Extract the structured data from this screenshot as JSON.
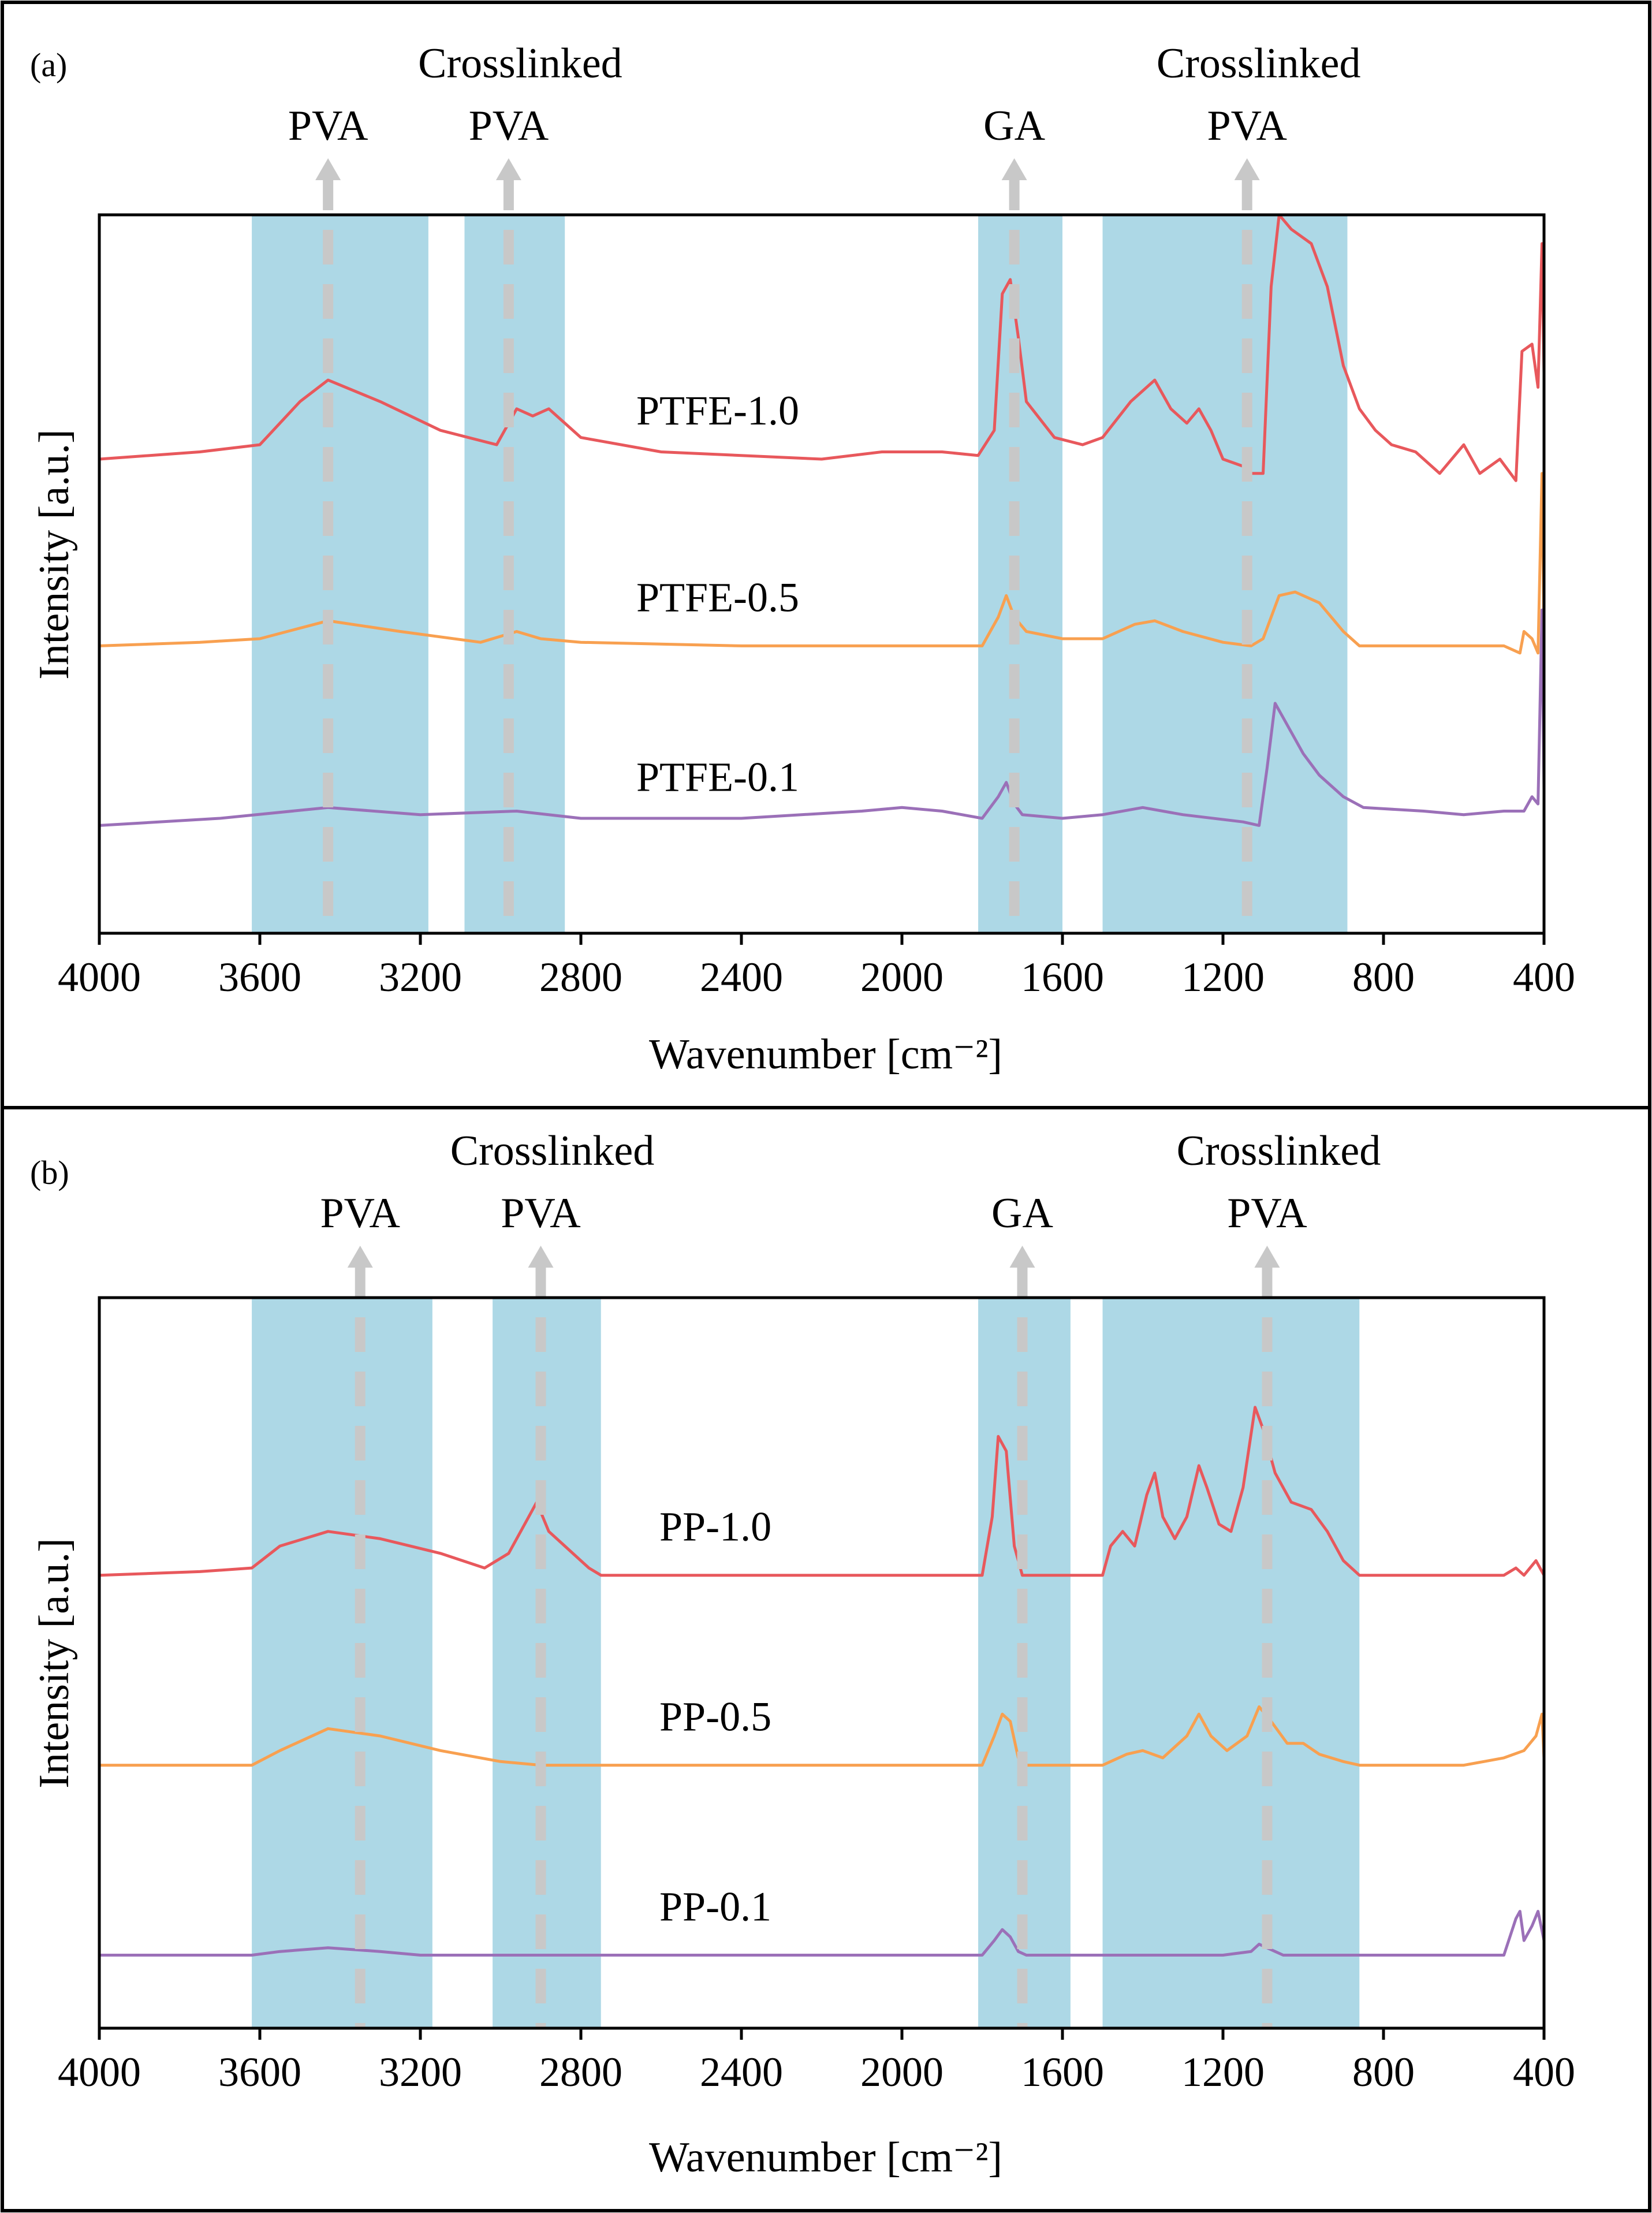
{
  "chart_data": [
    {
      "type": "line",
      "panel_label": "(a)",
      "xlabel": "Wavenumber [cm⁻²]",
      "ylabel": "Intensity [a.u.]",
      "xlim": [
        4000,
        400
      ],
      "x_reversed": true,
      "xticks": [
        "4000",
        "3600",
        "3200",
        "2800",
        "2400",
        "2000",
        "1600",
        "1200",
        "800",
        "400"
      ],
      "grid": false,
      "highlight_color": "#add8e6",
      "bands": [
        {
          "from": 3620,
          "to": 3180
        },
        {
          "from": 3090,
          "to": 2840
        },
        {
          "from": 1810,
          "to": 1600
        },
        {
          "from": 1500,
          "to": 890
        }
      ],
      "annotations": [
        {
          "lines": [
            "PVA"
          ],
          "x": 3430
        },
        {
          "lines": [
            "Crosslinked",
            "PVA"
          ],
          "x": 2980
        },
        {
          "lines": [
            "GA"
          ],
          "x": 1720
        },
        {
          "lines": [
            "Crosslinked",
            "PVA"
          ],
          "x": 1140
        }
      ],
      "series": [
        {
          "name": "PTFE-1.0",
          "color": "#e8585c",
          "baseline": 0.66,
          "points": [
            [
              4000,
              0.66
            ],
            [
              3750,
              0.67
            ],
            [
              3600,
              0.68
            ],
            [
              3500,
              0.74
            ],
            [
              3430,
              0.77
            ],
            [
              3300,
              0.74
            ],
            [
              3150,
              0.7
            ],
            [
              3010,
              0.68
            ],
            [
              2960,
              0.73
            ],
            [
              2920,
              0.72
            ],
            [
              2880,
              0.73
            ],
            [
              2800,
              0.69
            ],
            [
              2600,
              0.67
            ],
            [
              2200,
              0.66
            ],
            [
              2050,
              0.67
            ],
            [
              1900,
              0.67
            ],
            [
              1810,
              0.665
            ],
            [
              1770,
              0.7
            ],
            [
              1750,
              0.89
            ],
            [
              1730,
              0.91
            ],
            [
              1710,
              0.83
            ],
            [
              1690,
              0.74
            ],
            [
              1620,
              0.69
            ],
            [
              1550,
              0.68
            ],
            [
              1500,
              0.69
            ],
            [
              1430,
              0.74
            ],
            [
              1370,
              0.77
            ],
            [
              1330,
              0.73
            ],
            [
              1290,
              0.71
            ],
            [
              1260,
              0.73
            ],
            [
              1230,
              0.7
            ],
            [
              1200,
              0.66
            ],
            [
              1150,
              0.65
            ],
            [
              1130,
              0.64
            ],
            [
              1100,
              0.64
            ],
            [
              1080,
              0.9
            ],
            [
              1060,
              1.0
            ],
            [
              1030,
              0.98
            ],
            [
              980,
              0.96
            ],
            [
              940,
              0.9
            ],
            [
              900,
              0.79
            ],
            [
              860,
              0.73
            ],
            [
              820,
              0.7
            ],
            [
              780,
              0.68
            ],
            [
              720,
              0.67
            ],
            [
              660,
              0.64
            ],
            [
              600,
              0.68
            ],
            [
              560,
              0.64
            ],
            [
              510,
              0.66
            ],
            [
              470,
              0.63
            ],
            [
              455,
              0.81
            ],
            [
              430,
              0.82
            ],
            [
              415,
              0.76
            ],
            [
              405,
              0.96
            ],
            [
              400,
              0.78
            ]
          ]
        },
        {
          "name": "PTFE-0.5",
          "color": "#f8a050",
          "baseline": 0.4,
          "points": [
            [
              4000,
              0.4
            ],
            [
              3750,
              0.405
            ],
            [
              3600,
              0.41
            ],
            [
              3430,
              0.435
            ],
            [
              3250,
              0.42
            ],
            [
              3050,
              0.405
            ],
            [
              2960,
              0.42
            ],
            [
              2900,
              0.41
            ],
            [
              2800,
              0.405
            ],
            [
              2400,
              0.4
            ],
            [
              2000,
              0.4
            ],
            [
              1800,
              0.4
            ],
            [
              1760,
              0.44
            ],
            [
              1740,
              0.47
            ],
            [
              1720,
              0.44
            ],
            [
              1690,
              0.42
            ],
            [
              1600,
              0.41
            ],
            [
              1500,
              0.41
            ],
            [
              1420,
              0.43
            ],
            [
              1370,
              0.435
            ],
            [
              1300,
              0.42
            ],
            [
              1200,
              0.405
            ],
            [
              1130,
              0.4
            ],
            [
              1100,
              0.41
            ],
            [
              1060,
              0.47
            ],
            [
              1020,
              0.475
            ],
            [
              960,
              0.46
            ],
            [
              900,
              0.42
            ],
            [
              860,
              0.4
            ],
            [
              700,
              0.4
            ],
            [
              600,
              0.4
            ],
            [
              500,
              0.4
            ],
            [
              460,
              0.39
            ],
            [
              450,
              0.42
            ],
            [
              430,
              0.41
            ],
            [
              415,
              0.39
            ],
            [
              405,
              0.64
            ],
            [
              400,
              0.42
            ]
          ]
        },
        {
          "name": "PTFE-0.1",
          "color": "#9b70b8",
          "baseline": 0.15,
          "points": [
            [
              4000,
              0.15
            ],
            [
              3700,
              0.16
            ],
            [
              3430,
              0.175
            ],
            [
              3200,
              0.165
            ],
            [
              2960,
              0.17
            ],
            [
              2800,
              0.16
            ],
            [
              2400,
              0.16
            ],
            [
              2100,
              0.17
            ],
            [
              2000,
              0.175
            ],
            [
              1900,
              0.17
            ],
            [
              1800,
              0.16
            ],
            [
              1760,
              0.19
            ],
            [
              1740,
              0.21
            ],
            [
              1720,
              0.18
            ],
            [
              1700,
              0.165
            ],
            [
              1600,
              0.16
            ],
            [
              1500,
              0.165
            ],
            [
              1400,
              0.175
            ],
            [
              1300,
              0.165
            ],
            [
              1150,
              0.155
            ],
            [
              1110,
              0.15
            ],
            [
              1090,
              0.23
            ],
            [
              1070,
              0.32
            ],
            [
              1050,
              0.3
            ],
            [
              1000,
              0.25
            ],
            [
              960,
              0.22
            ],
            [
              900,
              0.19
            ],
            [
              850,
              0.175
            ],
            [
              700,
              0.17
            ],
            [
              600,
              0.165
            ],
            [
              500,
              0.17
            ],
            [
              450,
              0.17
            ],
            [
              430,
              0.19
            ],
            [
              415,
              0.18
            ],
            [
              405,
              0.45
            ],
            [
              400,
              0.2
            ]
          ]
        }
      ]
    },
    {
      "type": "line",
      "panel_label": "(b)",
      "xlabel": "Wavenumber [cm⁻²]",
      "ylabel": "Intensity [a.u.]",
      "xlim": [
        4000,
        400
      ],
      "x_reversed": true,
      "xticks": [
        "4000",
        "3600",
        "3200",
        "2800",
        "2400",
        "2000",
        "1600",
        "1200",
        "800",
        "400"
      ],
      "grid": false,
      "highlight_color": "#add8e6",
      "bands": [
        {
          "from": 3620,
          "to": 3170
        },
        {
          "from": 3020,
          "to": 2750
        },
        {
          "from": 1810,
          "to": 1580
        },
        {
          "from": 1500,
          "to": 860
        }
      ],
      "annotations": [
        {
          "lines": [
            "PVA"
          ],
          "x": 3350
        },
        {
          "lines": [
            "Crosslinked",
            "PVA"
          ],
          "x": 2900
        },
        {
          "lines": [
            "GA"
          ],
          "x": 1700
        },
        {
          "lines": [
            "Crosslinked",
            "PVA"
          ],
          "x": 1090
        }
      ],
      "series": [
        {
          "name": "PP-1.0",
          "color": "#e8585c",
          "baseline": 0.62,
          "points": [
            [
              4000,
              0.62
            ],
            [
              3750,
              0.625
            ],
            [
              3620,
              0.63
            ],
            [
              3550,
              0.66
            ],
            [
              3430,
              0.68
            ],
            [
              3300,
              0.67
            ],
            [
              3150,
              0.65
            ],
            [
              3040,
              0.63
            ],
            [
              2980,
              0.65
            ],
            [
              2940,
              0.69
            ],
            [
              2910,
              0.72
            ],
            [
              2880,
              0.68
            ],
            [
              2840,
              0.66
            ],
            [
              2780,
              0.63
            ],
            [
              2750,
              0.62
            ],
            [
              2400,
              0.62
            ],
            [
              2200,
              0.62
            ],
            [
              2000,
              0.62
            ],
            [
              1800,
              0.62
            ],
            [
              1775,
              0.7
            ],
            [
              1760,
              0.81
            ],
            [
              1740,
              0.79
            ],
            [
              1720,
              0.66
            ],
            [
              1700,
              0.62
            ],
            [
              1500,
              0.62
            ],
            [
              1480,
              0.66
            ],
            [
              1450,
              0.68
            ],
            [
              1420,
              0.66
            ],
            [
              1390,
              0.73
            ],
            [
              1370,
              0.76
            ],
            [
              1350,
              0.7
            ],
            [
              1320,
              0.67
            ],
            [
              1290,
              0.7
            ],
            [
              1260,
              0.77
            ],
            [
              1240,
              0.74
            ],
            [
              1210,
              0.69
            ],
            [
              1180,
              0.68
            ],
            [
              1150,
              0.74
            ],
            [
              1120,
              0.85
            ],
            [
              1100,
              0.82
            ],
            [
              1070,
              0.76
            ],
            [
              1030,
              0.72
            ],
            [
              980,
              0.71
            ],
            [
              940,
              0.68
            ],
            [
              900,
              0.64
            ],
            [
              860,
              0.62
            ],
            [
              500,
              0.62
            ],
            [
              470,
              0.63
            ],
            [
              450,
              0.62
            ],
            [
              420,
              0.64
            ],
            [
              400,
              0.62
            ]
          ]
        },
        {
          "name": "PP-0.5",
          "color": "#f8a050",
          "baseline": 0.36,
          "points": [
            [
              4000,
              0.36
            ],
            [
              3620,
              0.36
            ],
            [
              3550,
              0.38
            ],
            [
              3430,
              0.41
            ],
            [
              3300,
              0.4
            ],
            [
              3150,
              0.38
            ],
            [
              3000,
              0.365
            ],
            [
              2900,
              0.36
            ],
            [
              2400,
              0.36
            ],
            [
              1800,
              0.36
            ],
            [
              1770,
              0.4
            ],
            [
              1750,
              0.43
            ],
            [
              1730,
              0.42
            ],
            [
              1710,
              0.37
            ],
            [
              1690,
              0.36
            ],
            [
              1500,
              0.36
            ],
            [
              1440,
              0.375
            ],
            [
              1400,
              0.38
            ],
            [
              1350,
              0.37
            ],
            [
              1290,
              0.4
            ],
            [
              1260,
              0.43
            ],
            [
              1230,
              0.4
            ],
            [
              1190,
              0.38
            ],
            [
              1140,
              0.4
            ],
            [
              1110,
              0.44
            ],
            [
              1080,
              0.42
            ],
            [
              1040,
              0.39
            ],
            [
              1000,
              0.39
            ],
            [
              960,
              0.375
            ],
            [
              900,
              0.365
            ],
            [
              860,
              0.36
            ],
            [
              600,
              0.36
            ],
            [
              550,
              0.365
            ],
            [
              500,
              0.37
            ],
            [
              450,
              0.38
            ],
            [
              420,
              0.4
            ],
            [
              405,
              0.43
            ],
            [
              400,
              0.37
            ]
          ]
        },
        {
          "name": "PP-0.1",
          "color": "#9b70b8",
          "baseline": 0.1,
          "points": [
            [
              4000,
              0.1
            ],
            [
              3620,
              0.1
            ],
            [
              3550,
              0.105
            ],
            [
              3430,
              0.11
            ],
            [
              3300,
              0.105
            ],
            [
              3200,
              0.1
            ],
            [
              2800,
              0.1
            ],
            [
              2400,
              0.1
            ],
            [
              1800,
              0.1
            ],
            [
              1770,
              0.12
            ],
            [
              1750,
              0.135
            ],
            [
              1730,
              0.125
            ],
            [
              1710,
              0.105
            ],
            [
              1690,
              0.1
            ],
            [
              1200,
              0.1
            ],
            [
              1130,
              0.105
            ],
            [
              1110,
              0.115
            ],
            [
              1090,
              0.11
            ],
            [
              1050,
              0.1
            ],
            [
              500,
              0.1
            ],
            [
              470,
              0.15
            ],
            [
              460,
              0.16
            ],
            [
              450,
              0.12
            ],
            [
              430,
              0.14
            ],
            [
              415,
              0.16
            ],
            [
              400,
              0.12
            ]
          ]
        }
      ]
    }
  ]
}
